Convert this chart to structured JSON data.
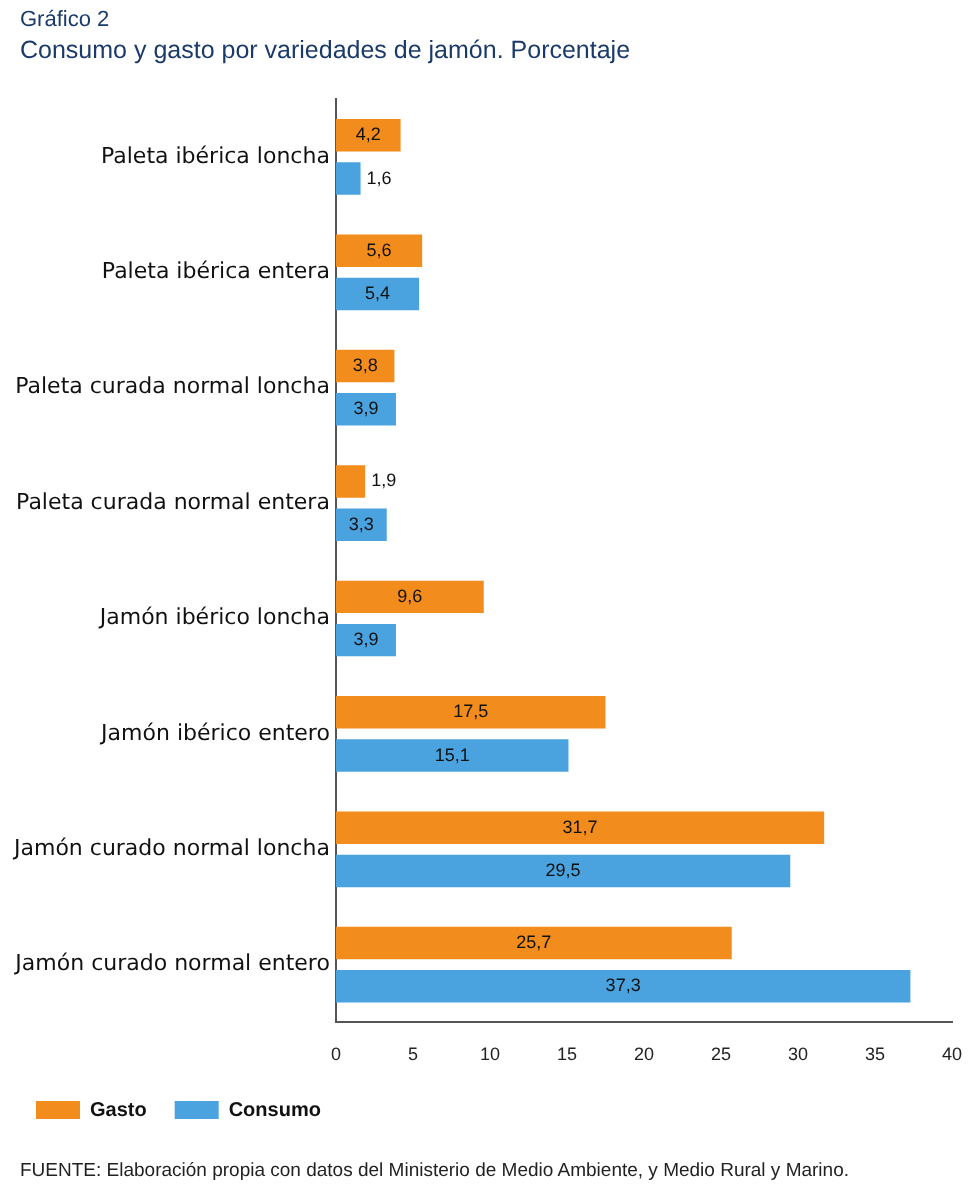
{
  "chart_data": {
    "type": "bar",
    "orientation": "horizontal",
    "title": "Gráfico 2",
    "subtitle": "Consumo y gasto por variedades de jamón. Porcentaje",
    "categories": [
      "Paleta ibérica loncha",
      "Paleta ibérica entera",
      "Paleta curada normal loncha",
      "Paleta curada normal entera",
      "Jamón ibérico loncha",
      "Jamón ibérico entero",
      "Jamón curado normal loncha",
      "Jamón curado normal entero"
    ],
    "series": [
      {
        "name": "Gasto",
        "color": "#f28c1c",
        "values": [
          4.2,
          5.6,
          3.8,
          1.9,
          9.6,
          17.5,
          31.7,
          25.7
        ],
        "value_labels": [
          "4,2",
          "5,6",
          "3,8",
          "1,9",
          "9,6",
          "17,5",
          "31,7",
          "25,7"
        ]
      },
      {
        "name": "Consumo",
        "color": "#4aa3df",
        "values": [
          1.6,
          5.4,
          3.9,
          3.3,
          3.9,
          15.1,
          29.5,
          37.3
        ],
        "value_labels": [
          "1,6",
          "5,4",
          "3,9",
          "3,3",
          "3,9",
          "15,1",
          "29,5",
          "37,3"
        ]
      }
    ],
    "xlim": [
      0,
      40
    ],
    "xticks": [
      0,
      5,
      10,
      15,
      20,
      25,
      30,
      35,
      40
    ],
    "grid": false,
    "legend": "bottom",
    "annotations": [
      "FUENTE: Elaboración propia con datos del Ministerio de Medio Ambiente, y Medio Rural y Marino."
    ]
  }
}
